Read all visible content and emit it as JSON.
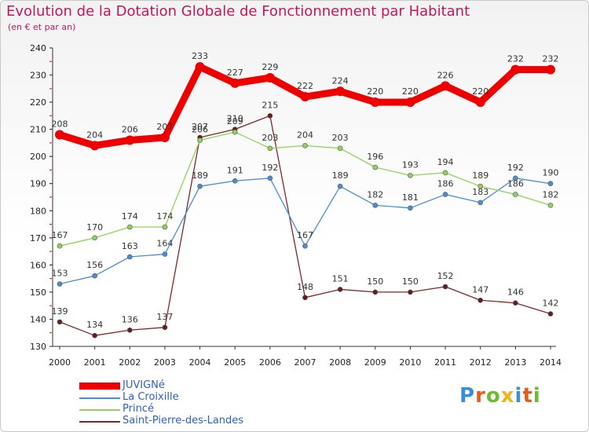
{
  "title": "Evolution de la Dotation Globale de Fonctionnement par Habitant",
  "subtitle": "(en € et par an)",
  "logo": {
    "text": "Proxiti",
    "colors": [
      "#3a8fd6",
      "#e65c1a",
      "#6dbb2e",
      "#f2b31b",
      "#3a8fd6",
      "#e65c1a",
      "#6dbb2e"
    ]
  },
  "chart_data": {
    "type": "line",
    "title": "Evolution de la Dotation Globale de Fonctionnement par Habitant",
    "subtitle": "(en € et par an)",
    "x": [
      "2000",
      "2001",
      "2002",
      "2003",
      "2004",
      "2005",
      "2006",
      "2007",
      "2008",
      "2009",
      "2010",
      "2011",
      "2012",
      "2013",
      "2014"
    ],
    "ylim": [
      130,
      240
    ],
    "yticks": [
      130,
      140,
      150,
      160,
      170,
      180,
      190,
      200,
      210,
      220,
      230,
      240
    ],
    "grid": false,
    "legend_position": "bottom-left",
    "series": [
      {
        "name": "JUVIGNé",
        "color": "#ee0000",
        "marker": "#ee0000",
        "width": "thick",
        "values": [
          208,
          204,
          206,
          207,
          233,
          227,
          229,
          222,
          224,
          220,
          220,
          226,
          220,
          232,
          232
        ],
        "labels": [
          "208",
          "204",
          "206",
          "207",
          "233",
          "227",
          "229",
          "222",
          "224",
          "220",
          "220",
          "226",
          "220",
          "232",
          "232"
        ]
      },
      {
        "name": "La Croixille",
        "color": "#4a8fd1",
        "marker": "#4a8fd1",
        "width": "thin",
        "values": [
          153,
          156,
          163,
          164,
          189,
          191,
          192,
          167,
          189,
          182,
          181,
          186,
          183,
          192,
          190
        ],
        "labels": [
          "153",
          "156",
          "163",
          "164",
          "189",
          "191",
          "192",
          "167",
          "189",
          "182",
          "181",
          "186",
          "183",
          "192",
          "190"
        ]
      },
      {
        "name": "Princé",
        "color": "#8fd35a",
        "marker": "#8fd35a",
        "width": "thin",
        "values": [
          167,
          170,
          174,
          174,
          206,
          209,
          203,
          204,
          203,
          196,
          193,
          194,
          189,
          186,
          182
        ],
        "labels": [
          "167",
          "170",
          "174",
          "174",
          "206",
          "209",
          "203",
          "204",
          "203",
          "196",
          "193",
          "194",
          "189",
          "186",
          "182"
        ]
      },
      {
        "name": "Saint-Pierre-des-Landes",
        "color": "#7a2a2a",
        "marker": "#6b1a1a",
        "width": "thin",
        "values": [
          139,
          134,
          136,
          137,
          207,
          210,
          215,
          148,
          151,
          150,
          150,
          152,
          147,
          146,
          142
        ],
        "labels": [
          "139",
          "134",
          "136",
          "137",
          "207",
          "210",
          "215",
          "148",
          "151",
          "150",
          "150",
          "152",
          "147",
          "146",
          "142"
        ]
      }
    ]
  }
}
